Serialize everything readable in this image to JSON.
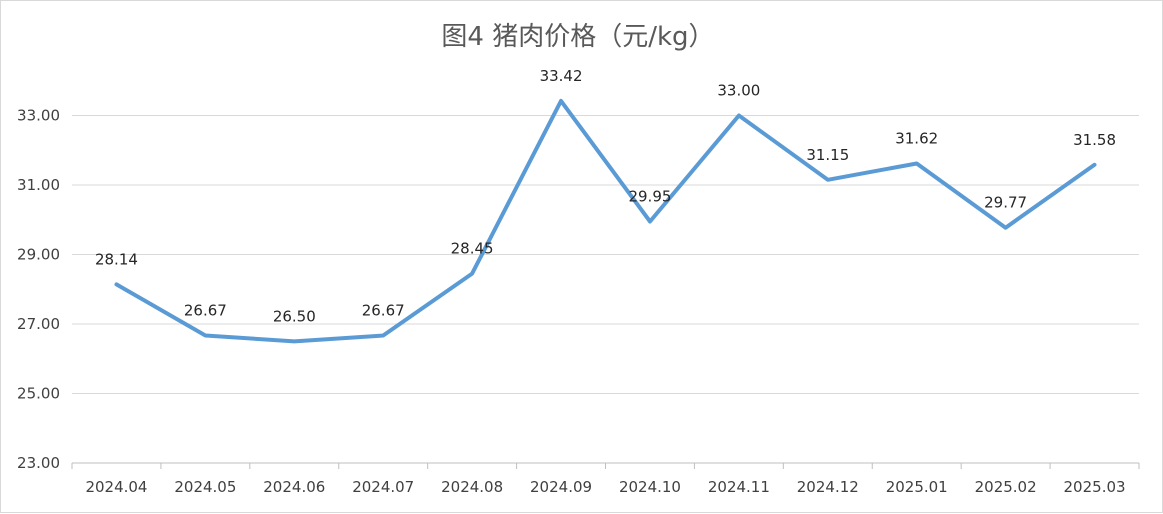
{
  "chart_data": {
    "type": "line",
    "title": "图4 猪肉价格（元/kg）",
    "xlabel": "",
    "ylabel": "",
    "categories": [
      "2024.04",
      "2024.05",
      "2024.06",
      "2024.07",
      "2024.08",
      "2024.09",
      "2024.10",
      "2024.11",
      "2024.12",
      "2025.01",
      "2025.02",
      "2025.03"
    ],
    "series": [
      {
        "values": [
          28.14,
          26.67,
          26.5,
          26.67,
          28.45,
          33.42,
          29.95,
          33.0,
          31.15,
          31.62,
          29.77,
          31.58
        ],
        "data_labels": [
          "28.14",
          "26.67",
          "26.50",
          "26.67",
          "28.45",
          "33.42",
          "29.95",
          "33.00",
          "31.15",
          "31.62",
          "29.77",
          "31.58"
        ],
        "color": "#5b9bd5"
      }
    ],
    "ylim": [
      23,
      35
    ],
    "yticks": [
      "23.00",
      "25.00",
      "27.00",
      "29.00",
      "31.00",
      "33.00"
    ],
    "ytick_values": [
      23,
      25,
      27,
      29,
      31,
      33
    ],
    "grid": true,
    "legend": "none"
  }
}
